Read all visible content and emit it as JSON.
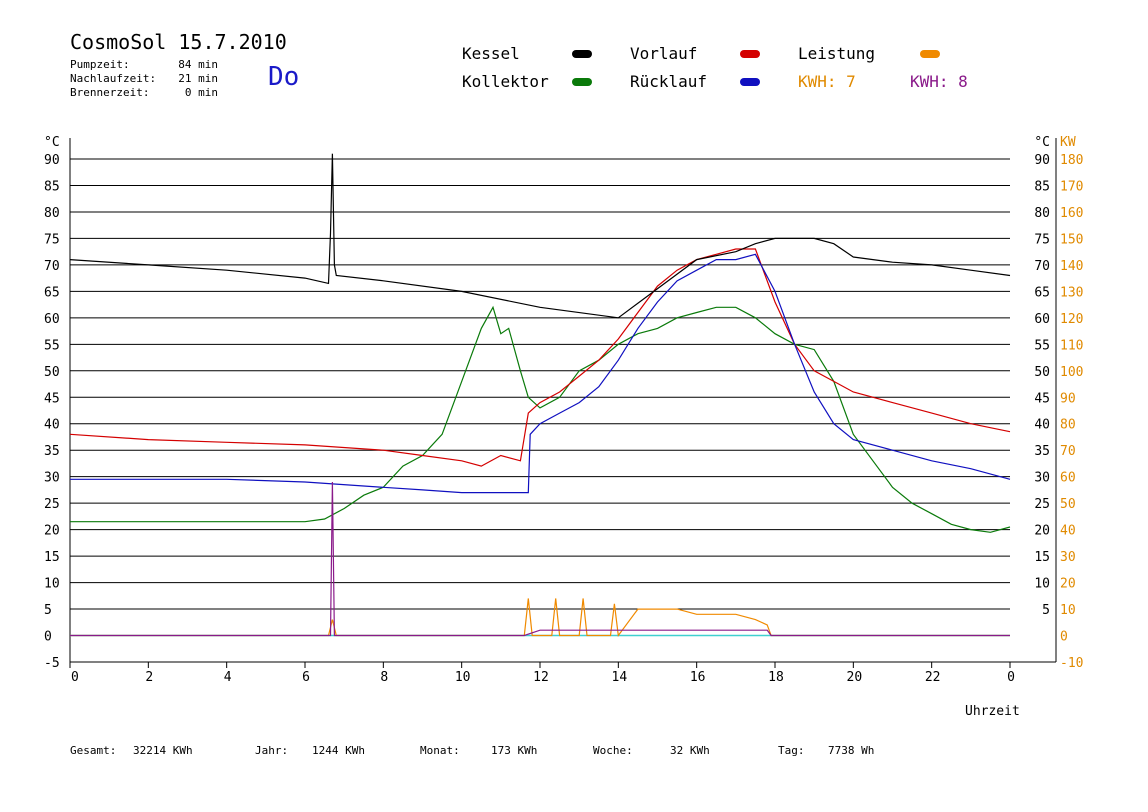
{
  "header": {
    "title": "CosmoSol 15.7.2010",
    "day": "Do",
    "stats": [
      {
        "label": "Pumpzeit:",
        "value": "84 min"
      },
      {
        "label": "Nachlaufzeit:",
        "value": "21 min"
      },
      {
        "label": "Brennerzeit:",
        "value": "0 min"
      }
    ]
  },
  "legend": {
    "kessel": "Kessel",
    "kollektor": "Kollektor",
    "vorlauf": "Vorlauf",
    "ruecklauf": "Rücklauf",
    "leistung": "Leistung",
    "kwh1": "KWH: 7",
    "kwh2": "KWH: 8"
  },
  "colors": {
    "kessel": "#000000",
    "kollektor": "#0a7a0a",
    "vorlauf": "#d40000",
    "ruecklauf": "#1010c0",
    "leistung": "#f08a00",
    "kwh2": "#8a1a8a",
    "baseline": "#40d0d0"
  },
  "footer": [
    {
      "label": "Gesamt:",
      "value": "32214 KWh"
    },
    {
      "label": "Jahr:",
      "value": "1244 KWh"
    },
    {
      "label": "Monat:",
      "value": "173 KWh"
    },
    {
      "label": "Woche:",
      "value": "32 KWh"
    },
    {
      "label": "Tag:",
      "value": "7738 Wh"
    }
  ],
  "chart_data": {
    "type": "line",
    "xlabel": "Uhrzeit",
    "ylabel_left": "°C",
    "ylabel_right_temp": "°C",
    "ylabel_right_power": "KW",
    "xlim": [
      0,
      24
    ],
    "ylim": [
      -5,
      90
    ],
    "x_ticks": [
      "0",
      "2",
      "4",
      "6",
      "8",
      "10",
      "12",
      "14",
      "16",
      "18",
      "20",
      "22",
      "0"
    ],
    "y_ticks_left": [
      "90",
      "85",
      "80",
      "75",
      "70",
      "65",
      "60",
      "55",
      "50",
      "45",
      "40",
      "35",
      "30",
      "25",
      "20",
      "15",
      "10",
      "5",
      "0",
      "-5"
    ],
    "y_ticks_right": [
      "90",
      "85",
      "80",
      "75",
      "70",
      "65",
      "60",
      "55",
      "50",
      "45",
      "40",
      "35",
      "30",
      "25",
      "20",
      "15",
      "10",
      "5"
    ],
    "y_ticks_power": [
      "180",
      "170",
      "160",
      "150",
      "140",
      "130",
      "120",
      "110",
      "100",
      "90",
      "80",
      "70",
      "60",
      "50",
      "40",
      "30",
      "20",
      "10",
      "0",
      "-10"
    ],
    "grid": true,
    "series": [
      {
        "name": "Kessel",
        "x": [
          0,
          2,
          4,
          6,
          6.6,
          6.65,
          6.7,
          6.75,
          6.8,
          8,
          10,
          12,
          14,
          16,
          17,
          17.5,
          18,
          19,
          19.5,
          20,
          21,
          22,
          23,
          24
        ],
        "y": [
          71,
          70,
          69,
          67.5,
          66.5,
          76,
          91,
          70,
          68,
          67,
          65,
          62,
          60,
          71,
          72.5,
          74,
          75,
          75,
          74,
          71.5,
          70.5,
          70,
          69,
          68
        ]
      },
      {
        "name": "Kollektor",
        "x": [
          0,
          2,
          4,
          6,
          6.5,
          7,
          7.5,
          8,
          8.5,
          9,
          9.5,
          10,
          10.5,
          10.8,
          11,
          11.2,
          11.5,
          11.7,
          12,
          12.5,
          13,
          13.5,
          14,
          14.5,
          15,
          15.5,
          16,
          16.5,
          17,
          17.5,
          18,
          18.5,
          19,
          19.5,
          20,
          20.5,
          21,
          21.5,
          22,
          22.5,
          23,
          23.5,
          24
        ],
        "y": [
          21.5,
          21.5,
          21.5,
          21.5,
          22,
          24,
          26.5,
          28,
          32,
          34,
          38,
          48,
          58,
          62,
          57,
          58,
          50,
          45,
          43,
          45,
          50,
          52,
          55,
          57,
          58,
          60,
          61,
          62,
          62,
          60,
          57,
          55,
          54,
          48,
          38,
          33,
          28,
          25,
          23,
          21,
          20,
          19.5,
          20.5
        ]
      },
      {
        "name": "Vorlauf",
        "x": [
          0,
          2,
          4,
          6,
          8,
          9,
          10,
          10.5,
          11,
          11.5,
          11.7,
          12,
          12.5,
          13,
          13.5,
          14,
          14.5,
          15,
          15.5,
          16,
          16.5,
          17,
          17.5,
          18,
          18.5,
          19,
          19.5,
          20,
          21,
          22,
          23,
          24
        ],
        "y": [
          38,
          37,
          36.5,
          36,
          35,
          34,
          33,
          32,
          34,
          33,
          42,
          44,
          46,
          49,
          52,
          56,
          61,
          66,
          69,
          71,
          72,
          73,
          73,
          63,
          55,
          50,
          48,
          46,
          44,
          42,
          40,
          38.5
        ]
      },
      {
        "name": "Rücklauf",
        "x": [
          0,
          2,
          4,
          6,
          8,
          9,
          10,
          11,
          11.7,
          11.75,
          12,
          12.5,
          13,
          13.5,
          14,
          14.5,
          15,
          15.5,
          16,
          16.5,
          17,
          17.5,
          18,
          18.5,
          19,
          19.5,
          20,
          21,
          22,
          23,
          24
        ],
        "y": [
          29.5,
          29.5,
          29.5,
          29,
          28,
          27.5,
          27,
          27,
          27,
          38,
          40,
          42,
          44,
          47,
          52,
          58,
          63,
          67,
          69,
          71,
          71,
          72,
          65,
          55,
          46,
          40,
          37,
          35,
          33,
          31.5,
          29.5
        ]
      },
      {
        "name": "Leistung",
        "x": [
          0,
          6.6,
          6.7,
          6.8,
          6.9,
          11.6,
          11.7,
          11.8,
          12.3,
          12.4,
          12.5,
          13,
          13.1,
          13.2,
          13.8,
          13.9,
          14,
          14.5,
          15,
          15.5,
          16,
          16.5,
          17,
          17.5,
          17.8,
          17.9,
          24
        ],
        "y": [
          0,
          0,
          3,
          0,
          0,
          0,
          7,
          0,
          0,
          7,
          0,
          0,
          7,
          0,
          0,
          6,
          0,
          5,
          5,
          5,
          4,
          4,
          4,
          3,
          2,
          0,
          0
        ]
      },
      {
        "name": "KWH: 8",
        "x": [
          0,
          6.65,
          6.7,
          6.75,
          6.8,
          11.6,
          12,
          13,
          14,
          15,
          16,
          17,
          17.8,
          17.9,
          24
        ],
        "y": [
          0,
          0,
          29,
          0,
          0,
          0,
          1,
          1,
          1,
          1,
          1,
          1,
          1,
          0,
          0
        ]
      }
    ]
  }
}
